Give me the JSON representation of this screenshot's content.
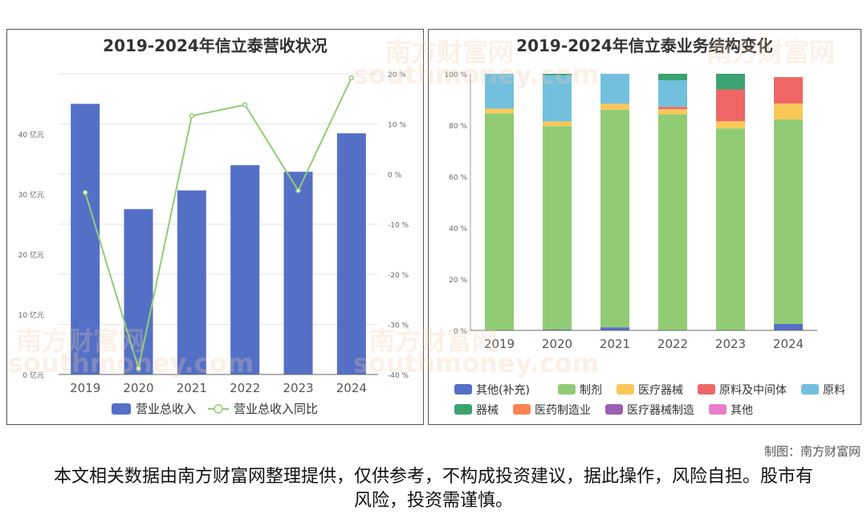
{
  "charts": [
    {
      "title": "2019-2024年信立泰营收状况",
      "chart_data": {
        "type": "bar+line",
        "categories": [
          "2019",
          "2020",
          "2021",
          "2022",
          "2023",
          "2024"
        ],
        "series": [
          {
            "name": "营业总收入",
            "type": "bar",
            "axis": "left",
            "color": "#5470c6",
            "values": [
              45.0,
              27.5,
              30.6,
              34.8,
              33.7,
              40.1
            ]
          },
          {
            "name": "营业总收入同比",
            "type": "line",
            "axis": "right",
            "color": "#91cc75",
            "values": [
              -3.7,
              -38.8,
              11.6,
              13.8,
              -3.3,
              19.2
            ]
          }
        ],
        "y_left": {
          "min": 0,
          "max": 50,
          "ticks": [
            0,
            10,
            20,
            30,
            40
          ],
          "tick_labels": [
            "0 亿元",
            "10 亿元",
            "20 亿元",
            "30 亿元",
            "40 亿元"
          ]
        },
        "y_right": {
          "min": -40,
          "max": 20,
          "ticks": [
            -40,
            -30,
            -20,
            -10,
            0,
            10,
            20
          ],
          "tick_labels": [
            "-40 %",
            "-30 %",
            "-20 %",
            "-10 %",
            "0 %",
            "10 %",
            "20 %"
          ]
        },
        "grid": true,
        "legend": "bottom"
      }
    },
    {
      "title": "2019-2024年信立泰业务结构变化",
      "chart_data": {
        "type": "stacked-bar",
        "categories": [
          "2019",
          "2020",
          "2021",
          "2022",
          "2023",
          "2024"
        ],
        "series": [
          {
            "name": "其他(补充)",
            "color": "#5470c6",
            "values": [
              0,
              0.3,
              1.2,
              0,
              0,
              2.5
            ]
          },
          {
            "name": "制剂",
            "color": "#91cc75",
            "values": [
              84.6,
              79.3,
              84.8,
              84.2,
              78.7,
              79.7
            ]
          },
          {
            "name": "医疗器械",
            "color": "#fac858",
            "values": [
              1.8,
              1.8,
              2.3,
              2.0,
              2.8,
              6.2
            ]
          },
          {
            "name": "原料及中间体",
            "color": "#ee6666",
            "values": [
              0,
              0,
              0,
              0.9,
              12.4,
              10.3
            ]
          },
          {
            "name": "原料",
            "color": "#73c0de",
            "values": [
              13.6,
              18.0,
              11.7,
              10.4,
              0,
              0
            ]
          },
          {
            "name": "器械",
            "color": "#3ba272",
            "values": [
              0,
              0.6,
              0,
              2.5,
              6.1,
              0
            ]
          },
          {
            "name": "医药制造业",
            "color": "#fc8452",
            "values": [
              0,
              0,
              0,
              0,
              0,
              0
            ]
          },
          {
            "name": "医疗器械制造",
            "color": "#9a60b4",
            "values": [
              0,
              0,
              0,
              0,
              0,
              0
            ]
          },
          {
            "name": "其他",
            "color": "#ea7ccc",
            "values": [
              0,
              0,
              0,
              0,
              0,
              0
            ]
          }
        ],
        "y": {
          "min": 0,
          "max": 100,
          "ticks": [
            0,
            20,
            40,
            60,
            80,
            100
          ],
          "tick_labels": [
            "0 %",
            "20 %",
            "40 %",
            "60 %",
            "80 %",
            "100 %"
          ]
        },
        "grid": false,
        "legend": "bottom"
      }
    }
  ],
  "credit": "制图：南方财富网",
  "disclaimer": "本文相关数据由南方财富网整理提供，仅供参考，不构成投资建议，据此操作，风险自担。股市有风险，投资需谨慎。",
  "watermark": {
    "cn": "南方财富网",
    "en": "southmoney.com"
  }
}
